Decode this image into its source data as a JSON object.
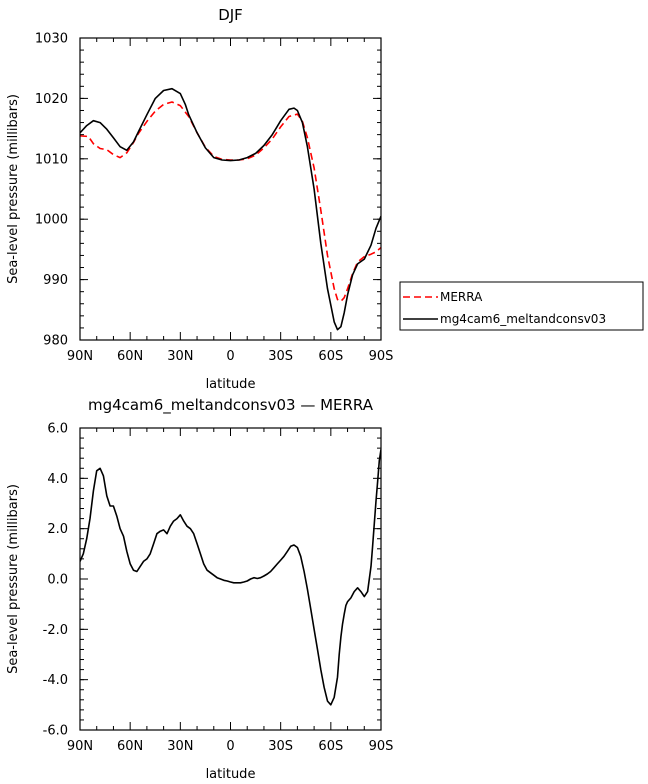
{
  "chart_data": [
    {
      "type": "line",
      "title": "DJF",
      "xlabel": "latitude",
      "ylabel": "Sea-level pressure (millibars)",
      "xlim": [
        90,
        -90
      ],
      "ylim": [
        980,
        1030
      ],
      "x_ticks": [
        90,
        60,
        30,
        0,
        -30,
        -60,
        -90
      ],
      "x_tick_labels": [
        "90N",
        "60N",
        "30N",
        "0",
        "30S",
        "60S",
        "90S"
      ],
      "y_ticks": [
        980,
        990,
        1000,
        1010,
        1020,
        1030
      ],
      "y_tick_labels": [
        "980",
        "990",
        "1000",
        "1010",
        "1020",
        "1030"
      ],
      "grid": false,
      "legend_position": "right-bottom outside",
      "series": [
        {
          "name": "MERRA",
          "color": "#ff0000",
          "style": "dashed",
          "x": [
            90,
            85,
            82,
            78,
            74,
            70,
            66,
            62,
            58,
            55,
            50,
            45,
            40,
            35,
            30,
            25,
            20,
            15,
            10,
            5,
            0,
            -5,
            -10,
            -15,
            -20,
            -25,
            -30,
            -35,
            -40,
            -43,
            -46,
            -50,
            -54,
            -58,
            -62,
            -64,
            -66,
            -68,
            -70,
            -73,
            -76,
            -80,
            -84,
            -87,
            -90
          ],
          "y": [
            1013.8,
            1013.7,
            1012.5,
            1011.7,
            1011.5,
            1010.7,
            1010.2,
            1011.0,
            1012.7,
            1014.2,
            1016.2,
            1017.9,
            1019.0,
            1019.4,
            1018.8,
            1017.0,
            1014.3,
            1011.9,
            1010.4,
            1009.9,
            1009.8,
            1009.8,
            1010.0,
            1010.6,
            1011.8,
            1013.3,
            1015.3,
            1017.0,
            1017.4,
            1016.2,
            1013.5,
            1008.5,
            1001.5,
            994.0,
            988.5,
            986.7,
            986.4,
            987.0,
            988.5,
            991.0,
            992.9,
            993.8,
            994.2,
            994.6,
            995.3
          ]
        },
        {
          "name": "mg4cam6_meltandconsv03",
          "color": "#000000",
          "style": "solid",
          "x": [
            90,
            86,
            82,
            78,
            74,
            70,
            66,
            62,
            58,
            55,
            50,
            45,
            40,
            35,
            30,
            27,
            25,
            20,
            15,
            10,
            5,
            0,
            -5,
            -10,
            -15,
            -20,
            -25,
            -30,
            -35,
            -38,
            -40,
            -43,
            -46,
            -50,
            -54,
            -58,
            -62,
            -64,
            -66,
            -68,
            -70,
            -73,
            -76,
            -80,
            -84,
            -87,
            -90
          ],
          "y": [
            1014.3,
            1015.5,
            1016.3,
            1016.0,
            1014.9,
            1013.5,
            1012.0,
            1011.4,
            1012.8,
            1014.5,
            1017.3,
            1020.0,
            1021.3,
            1021.6,
            1020.8,
            1019.0,
            1017.3,
            1014.3,
            1011.8,
            1010.2,
            1009.8,
            1009.7,
            1009.8,
            1010.2,
            1010.9,
            1012.2,
            1014.0,
            1016.3,
            1018.2,
            1018.4,
            1018.0,
            1016.0,
            1012.0,
            1005.0,
            996.0,
            988.5,
            983.0,
            981.7,
            982.2,
            984.5,
            987.5,
            990.8,
            992.6,
            993.4,
            995.7,
            998.5,
            1000.5
          ]
        }
      ]
    },
    {
      "type": "line",
      "title": "mg4cam6_meltandconsv03 — MERRA",
      "xlabel": "latitude",
      "ylabel": "Sea-level pressure (millibars)",
      "xlim": [
        90,
        -90
      ],
      "ylim": [
        -6,
        6
      ],
      "x_ticks": [
        90,
        60,
        30,
        0,
        -30,
        -60,
        -90
      ],
      "x_tick_labels": [
        "90N",
        "60N",
        "30N",
        "0",
        "30S",
        "60S",
        "90S"
      ],
      "y_ticks": [
        -6,
        -4,
        -2,
        0,
        2,
        4,
        6
      ],
      "y_tick_labels": [
        "-6.0",
        "-4.0",
        "-2.0",
        "0.0",
        "2.0",
        "4.0",
        "6.0"
      ],
      "grid": false,
      "series": [
        {
          "color": "#000000",
          "style": "solid",
          "x": [
            90,
            88,
            86,
            84,
            82,
            80,
            78,
            76,
            74,
            72,
            70,
            68,
            66,
            64,
            62,
            60,
            58,
            56,
            54,
            52,
            50,
            48,
            46,
            44,
            42,
            40,
            38,
            36,
            34,
            32,
            30,
            28,
            26,
            24,
            22,
            20,
            18,
            16,
            14,
            12,
            10,
            8,
            6,
            4,
            2,
            0,
            -2,
            -4,
            -6,
            -8,
            -10,
            -12,
            -14,
            -16,
            -18,
            -20,
            -22,
            -24,
            -26,
            -28,
            -30,
            -32,
            -34,
            -36,
            -38,
            -40,
            -42,
            -44,
            -46,
            -48,
            -50,
            -52,
            -54,
            -56,
            -58,
            -60,
            -62,
            -64,
            -65,
            -66,
            -67,
            -68,
            -69,
            -70,
            -72,
            -74,
            -76,
            -78,
            -80,
            -82,
            -84,
            -85,
            -86,
            -87,
            -88,
            -89,
            -90
          ],
          "y": [
            0.7,
            1.0,
            1.6,
            2.4,
            3.5,
            4.3,
            4.4,
            4.1,
            3.3,
            2.9,
            2.9,
            2.5,
            2.0,
            1.7,
            1.1,
            0.6,
            0.35,
            0.3,
            0.5,
            0.7,
            0.8,
            1.0,
            1.4,
            1.8,
            1.9,
            1.95,
            1.8,
            2.1,
            2.3,
            2.4,
            2.55,
            2.3,
            2.1,
            2.0,
            1.8,
            1.4,
            1.0,
            0.6,
            0.35,
            0.25,
            0.15,
            0.05,
            0.0,
            -0.05,
            -0.08,
            -0.12,
            -0.15,
            -0.15,
            -0.15,
            -0.12,
            -0.08,
            0.0,
            0.05,
            0.02,
            0.05,
            0.12,
            0.2,
            0.3,
            0.45,
            0.6,
            0.75,
            0.9,
            1.1,
            1.3,
            1.35,
            1.25,
            0.9,
            0.3,
            -0.4,
            -1.2,
            -2.0,
            -2.8,
            -3.6,
            -4.3,
            -4.85,
            -5.0,
            -4.7,
            -3.9,
            -3.0,
            -2.3,
            -1.8,
            -1.4,
            -1.05,
            -0.9,
            -0.75,
            -0.5,
            -0.35,
            -0.5,
            -0.7,
            -0.5,
            0.5,
            1.3,
            2.2,
            3.1,
            3.9,
            4.7,
            5.15
          ]
        }
      ]
    }
  ]
}
